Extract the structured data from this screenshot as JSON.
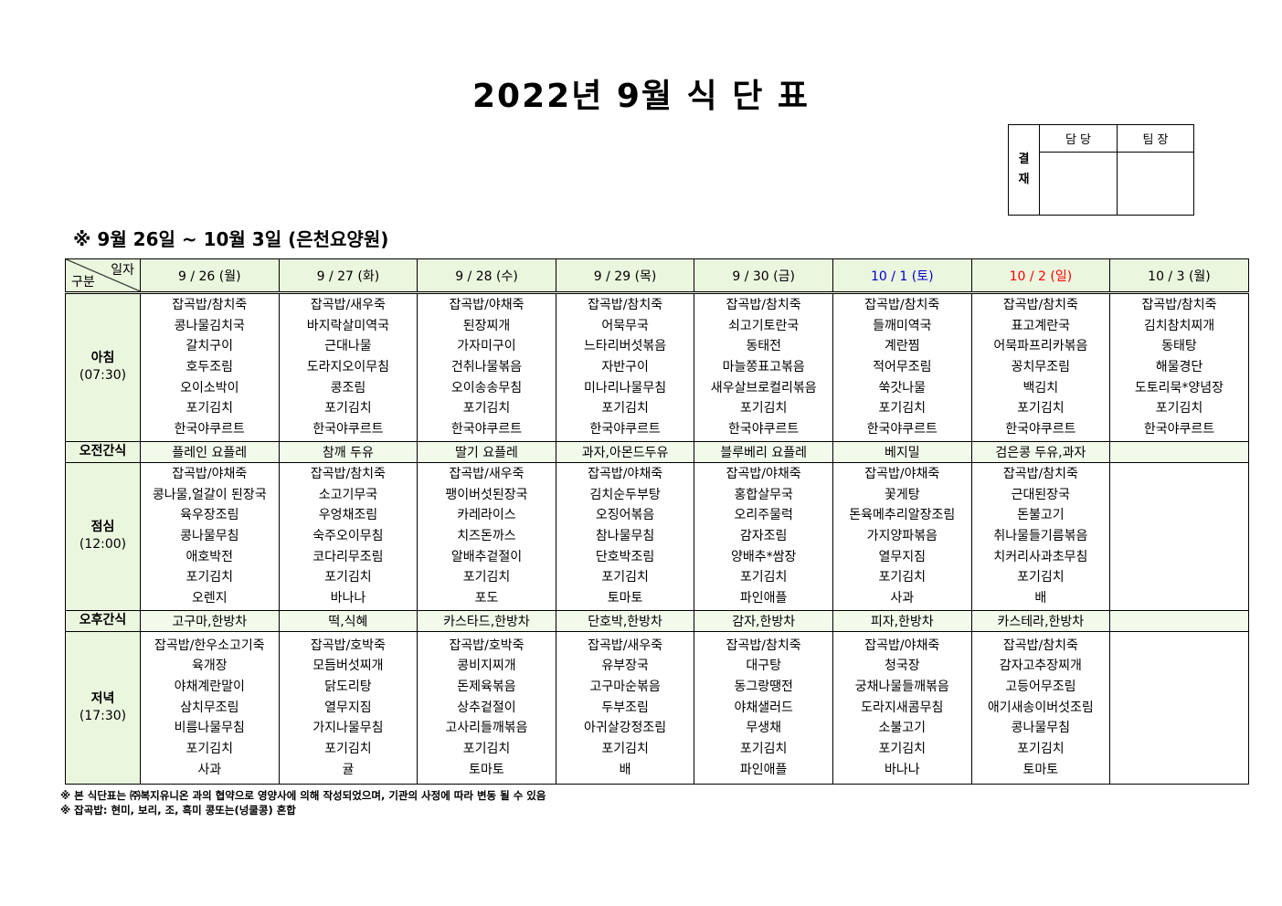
{
  "title": "2022년 9월 식 단 표",
  "approval": {
    "side_label": "결\n재",
    "col1": "담 당",
    "col2": "팀 장"
  },
  "subtitle": "※ 9월 26일 ~ 10월 3일 (은천요양원)",
  "corner": {
    "top": "일자",
    "bottom": "구분"
  },
  "colors": {
    "header_bg": "#ebf6df",
    "saturday": "#0000cc",
    "sunday": "#ff0000"
  },
  "days": [
    {
      "label": "9 / 26 (월)",
      "color": "#000000"
    },
    {
      "label": "9 / 27 (화)",
      "color": "#000000"
    },
    {
      "label": "9 / 28 (수)",
      "color": "#000000"
    },
    {
      "label": "9 / 29 (목)",
      "color": "#000000"
    },
    {
      "label": "9 / 30 (금)",
      "color": "#000000"
    },
    {
      "label": "10 / 1 (토)",
      "color": "#0000cc"
    },
    {
      "label": "10 / 2 (일)",
      "color": "#ff0000"
    },
    {
      "label": "10 / 3 (월)",
      "color": "#000000"
    }
  ],
  "rows": [
    {
      "type": "meal",
      "label": "아침",
      "time": "(07:30)",
      "items": [
        [
          "잡곡밥/참치죽",
          "콩나물김치국",
          "갈치구이",
          "호두조림",
          "오이소박이",
          "포기김치",
          "한국야쿠르트"
        ],
        [
          "잡곡밥/새우죽",
          "바지락살미역국",
          "근대나물",
          "도라지오이무침",
          "콩조림",
          "포기김치",
          "한국야쿠르트"
        ],
        [
          "잡곡밥/야채죽",
          "된장찌개",
          "가자미구이",
          "건취나물볶음",
          "오이송송무침",
          "포기김치",
          "한국야쿠르트"
        ],
        [
          "잡곡밥/참치죽",
          "어묵무국",
          "느타리버섯볶음",
          "자반구이",
          "미나리나물무침",
          "포기김치",
          "한국야쿠르트"
        ],
        [
          "잡곡밥/참치죽",
          "쇠고기토란국",
          "동태전",
          "마늘쫑표고볶음",
          "새우살브로컬리볶음",
          "포기김치",
          "한국야쿠르트"
        ],
        [
          "잡곡밥/참치죽",
          "들깨미역국",
          "계란찜",
          "적어무조림",
          "쑥갓나물",
          "포기김치",
          "한국야쿠르트"
        ],
        [
          "잡곡밥/참치죽",
          "표고계란국",
          "어묵파프리카볶음",
          "꽁치무조림",
          "백김치",
          "포기김치",
          "한국야쿠르트"
        ],
        [
          "잡곡밥/참치죽",
          "김치참치찌개",
          "동태탕",
          "해물경단",
          "도토리묵*양념장",
          "포기김치",
          "한국야쿠르트"
        ]
      ]
    },
    {
      "type": "snack",
      "label": "오전간식",
      "items": [
        "플레인 요플레",
        "참깨 두유",
        "딸기 요플레",
        "과자,아몬드두유",
        "블루베리 요플레",
        "베지밀",
        "검은콩 두유,과자",
        ""
      ]
    },
    {
      "type": "meal",
      "label": "점심",
      "time": "(12:00)",
      "items": [
        [
          "잡곡밥/야채죽",
          "콩나물,얼갈이 된장국",
          "육우장조림",
          "콩나물무침",
          "애호박전",
          "포기김치",
          "오렌지"
        ],
        [
          "잡곡밥/참치죽",
          "소고기무국",
          "우엉채조림",
          "숙주오이무침",
          "코다리무조림",
          "포기김치",
          "바나나"
        ],
        [
          "잡곡밥/새우죽",
          "팽이버섯된장국",
          "카레라이스",
          "치즈돈까스",
          "알배추겉절이",
          "포기김치",
          "포도"
        ],
        [
          "잡곡밥/야채죽",
          "김치순두부탕",
          "오징어볶음",
          "참나물무침",
          "단호박조림",
          "포기김치",
          "토마토"
        ],
        [
          "잡곡밥/야채죽",
          "홍합살무국",
          "오리주물럭",
          "감자조림",
          "양배추*쌈장",
          "포기김치",
          "파인애플"
        ],
        [
          "잡곡밥/야채죽",
          "꽃게탕",
          "돈육메추리알장조림",
          "가지양파볶음",
          "열무지짐",
          "포기김치",
          "사과"
        ],
        [
          "잡곡밥/참치죽",
          "근대된장국",
          "돈불고기",
          "취나물들기름볶음",
          "치커리사과초무침",
          "포기김치",
          "배"
        ],
        []
      ]
    },
    {
      "type": "snack",
      "label": "오후간식",
      "items": [
        "고구마,한방차",
        "떡,식혜",
        "카스타드,한방차",
        "단호박,한방차",
        "감자,한방차",
        "피자,한방차",
        "카스테라,한방차",
        ""
      ]
    },
    {
      "type": "meal",
      "label": "저녁",
      "time": "(17:30)",
      "items": [
        [
          "잡곡밥/한우소고기죽",
          "육개장",
          "야채계란말이",
          "삼치무조림",
          "비름나물무침",
          "포기김치",
          "사과"
        ],
        [
          "잡곡밥/호박죽",
          "모듬버섯찌개",
          "닭도리탕",
          "열무지짐",
          "가지나물무침",
          "포기김치",
          "귤"
        ],
        [
          "잡곡밥/호박죽",
          "콩비지찌개",
          "돈제육볶음",
          "상추겉절이",
          "고사리들깨볶음",
          "포기김치",
          "토마토"
        ],
        [
          "잡곡밥/새우죽",
          "유부장국",
          "고구마순볶음",
          "두부조림",
          "아귀살강정조림",
          "포기김치",
          "배"
        ],
        [
          "잡곡밥/참치죽",
          "대구탕",
          "동그랑땡전",
          "야채샐러드",
          "무생채",
          "포기김치",
          "파인애플"
        ],
        [
          "잡곡밥/야채죽",
          "청국장",
          "궁채나물들깨볶음",
          "도라지새콤무침",
          "소불고기",
          "포기김치",
          "바나나"
        ],
        [
          "잡곡밥/참치죽",
          "감자고추장찌개",
          "고등어무조림",
          "애기새송이버섯조림",
          "콩나물무침",
          "포기김치",
          "토마토"
        ],
        []
      ]
    }
  ],
  "notes": [
    "※ 본 식단표는 ㈜복지유니온 과의 협약으로 영양사에 의해 작성되었으며, 기관의 사정에 따라 변동 될 수 있음",
    "※ 잡곡밥: 현미, 보리, 조, 흑미 콩또는(넝쿨콩) 혼합"
  ]
}
